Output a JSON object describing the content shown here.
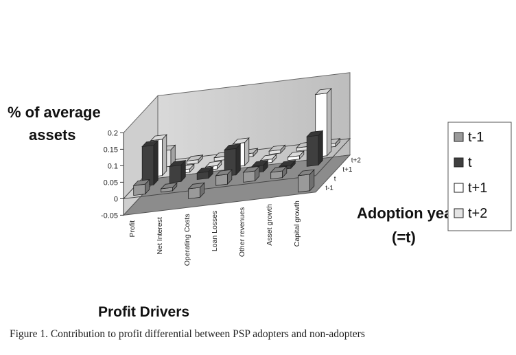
{
  "caption": "Figure 1.  Contribution to profit differential between PSP adopters and non-adopters",
  "chart_data": {
    "type": "bar3d",
    "ylabel_line1": "% of average",
    "ylabel_line2": "assets",
    "xlabel": "Profit Drivers",
    "zlabel_line1": "Adoption year",
    "zlabel_line2": "(=t)",
    "ylim": [
      -0.05,
      0.2
    ],
    "yticks": [
      "-0.05",
      "0",
      "0.05",
      "0.1",
      "0.15",
      "0.2"
    ],
    "categories": [
      "Profit",
      "Net Interest",
      "Operating Costs",
      "Loan Losses",
      "Other revenues",
      "Asset growth",
      "Capital growth"
    ],
    "depth_labels": [
      "t-1",
      "t",
      "t+1",
      "t+2"
    ],
    "series": [
      {
        "name": "t-1",
        "color": "#9a9a9a",
        "values": [
          0.03,
          0.01,
          -0.03,
          0.03,
          0.03,
          0.02,
          -0.05
        ]
      },
      {
        "name": "t",
        "color": "#3f3f3f",
        "values": [
          0.12,
          0.05,
          0.02,
          0.08,
          0.02,
          0.01,
          0.09
        ]
      },
      {
        "name": "t+1",
        "color": "#ffffff",
        "values": [
          0.11,
          0.01,
          0.01,
          0.07,
          0.01,
          0.01,
          0.19
        ]
      },
      {
        "name": "t+2",
        "color": "#e4e4e4",
        "values": [
          0.05,
          0.01,
          0.01,
          0.01,
          0.01,
          0.01,
          0.01
        ]
      }
    ],
    "legend": [
      "t-1",
      "t",
      "t+1",
      "t+2"
    ],
    "legend_position": "right",
    "grid": false
  }
}
